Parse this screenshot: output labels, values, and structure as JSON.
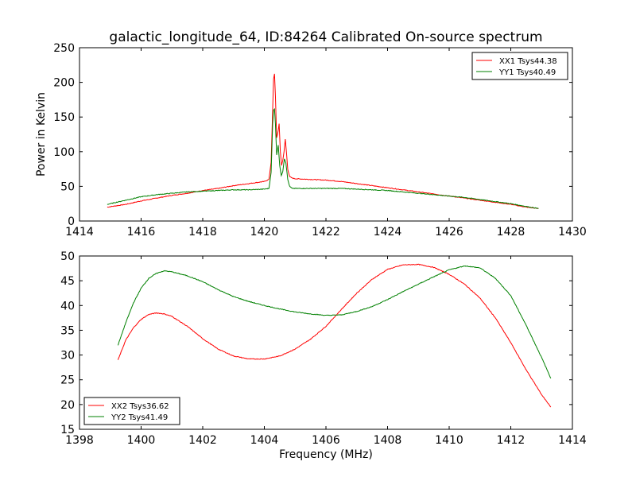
{
  "chart_data": [
    {
      "type": "line",
      "title": "galactic_longitude_64, ID:84264 Calibrated On-source spectrum",
      "xlabel": "",
      "ylabel": "Power in Kelvin",
      "xlim": [
        1414,
        1430
      ],
      "ylim": [
        0,
        250
      ],
      "xticks": [
        1414,
        1416,
        1418,
        1420,
        1422,
        1424,
        1426,
        1428,
        1430
      ],
      "yticks": [
        0,
        50,
        100,
        150,
        200,
        250
      ],
      "grid": false,
      "legend_position": "top-right",
      "series": [
        {
          "name": "XX1 Tsys44.38",
          "color": "#ff0000",
          "x": [
            1414.9,
            1415.5,
            1416,
            1416.5,
            1417,
            1417.5,
            1418,
            1418.5,
            1419,
            1419.5,
            1420,
            1420.15,
            1420.22,
            1420.27,
            1420.3,
            1420.33,
            1420.36,
            1420.4,
            1420.45,
            1420.48,
            1420.52,
            1420.56,
            1420.6,
            1420.64,
            1420.68,
            1420.72,
            1420.76,
            1420.82,
            1420.9,
            1421,
            1421.5,
            1422,
            1422.5,
            1423,
            1423.5,
            1424,
            1424.5,
            1425,
            1425.5,
            1426,
            1426.5,
            1427,
            1427.5,
            1428,
            1428.5,
            1428.9
          ],
          "y": [
            20,
            24,
            29,
            33,
            37,
            40,
            44,
            47,
            51,
            54,
            57,
            60,
            85,
            160,
            205,
            212,
            180,
            120,
            130,
            140,
            100,
            80,
            88,
            100,
            118,
            98,
            75,
            64,
            62,
            61,
            60,
            59,
            57,
            54,
            51,
            48,
            45,
            42,
            39,
            36,
            33,
            30,
            27,
            24,
            20,
            18
          ]
        },
        {
          "name": "YY1 Tsys40.49",
          "color": "#008000",
          "x": [
            1414.9,
            1415.5,
            1416,
            1416.5,
            1417,
            1417.5,
            1418,
            1418.5,
            1419,
            1419.5,
            1420,
            1420.15,
            1420.22,
            1420.27,
            1420.3,
            1420.33,
            1420.36,
            1420.4,
            1420.45,
            1420.5,
            1420.55,
            1420.6,
            1420.65,
            1420.7,
            1420.76,
            1420.82,
            1420.9,
            1421,
            1421.5,
            1422,
            1422.5,
            1423,
            1423.5,
            1424,
            1424.5,
            1425,
            1425.5,
            1426,
            1426.5,
            1427,
            1427.5,
            1428,
            1428.5,
            1428.9
          ],
          "y": [
            24,
            30,
            35,
            38,
            40,
            42,
            43,
            44,
            45,
            45,
            46,
            47,
            70,
            140,
            160,
            162,
            140,
            95,
            110,
            80,
            65,
            72,
            90,
            84,
            60,
            50,
            47,
            47,
            47,
            47,
            47,
            46,
            45,
            44,
            42,
            40,
            38,
            36,
            34,
            31,
            28,
            25,
            21,
            18
          ]
        }
      ]
    },
    {
      "type": "line",
      "title": "",
      "xlabel": "Frequency (MHz)",
      "ylabel": "",
      "xlim": [
        1398,
        1414
      ],
      "ylim": [
        15,
        50
      ],
      "xticks": [
        1398,
        1400,
        1402,
        1404,
        1406,
        1408,
        1410,
        1412,
        1414
      ],
      "yticks": [
        15,
        20,
        25,
        30,
        35,
        40,
        45,
        50
      ],
      "grid": false,
      "legend_position": "bottom-left",
      "series": [
        {
          "name": "XX2 Tsys36.62",
          "color": "#ff0000",
          "x": [
            1399.25,
            1399.5,
            1399.75,
            1400,
            1400.25,
            1400.5,
            1400.75,
            1401,
            1401.5,
            1402,
            1402.5,
            1403,
            1403.5,
            1404,
            1404.5,
            1405,
            1405.5,
            1406,
            1406.5,
            1407,
            1407.5,
            1408,
            1408.5,
            1409,
            1409.5,
            1410,
            1410.5,
            1411,
            1411.5,
            1412,
            1412.5,
            1413,
            1413.3
          ],
          "y": [
            29,
            33,
            35.5,
            37.2,
            38.2,
            38.5,
            38.3,
            37.8,
            35.8,
            33.3,
            31.2,
            29.8,
            29.2,
            29.2,
            29.8,
            31.2,
            33.2,
            35.8,
            39.2,
            42.5,
            45.3,
            47.3,
            48.2,
            48.3,
            47.7,
            46.3,
            44.3,
            41.5,
            37.5,
            32.5,
            27,
            22,
            19.5
          ]
        },
        {
          "name": "YY2 Tsys41.49",
          "color": "#008000",
          "x": [
            1399.25,
            1399.5,
            1399.75,
            1400,
            1400.25,
            1400.5,
            1400.75,
            1401,
            1401.5,
            1402,
            1402.5,
            1403,
            1403.5,
            1404,
            1404.5,
            1405,
            1405.5,
            1406,
            1406.5,
            1407,
            1407.5,
            1408,
            1408.5,
            1409,
            1409.5,
            1410,
            1410.5,
            1411,
            1411.5,
            1412,
            1412.5,
            1413,
            1413.3
          ],
          "y": [
            32,
            36.5,
            40.5,
            43.5,
            45.5,
            46.5,
            47,
            46.8,
            46,
            44.8,
            43.2,
            41.8,
            40.8,
            40,
            39.3,
            38.7,
            38.3,
            38,
            38.1,
            38.8,
            39.8,
            41.2,
            42.8,
            44.3,
            45.8,
            47.2,
            48,
            47.6,
            45.5,
            42,
            36,
            29.5,
            25.3
          ]
        }
      ]
    }
  ]
}
